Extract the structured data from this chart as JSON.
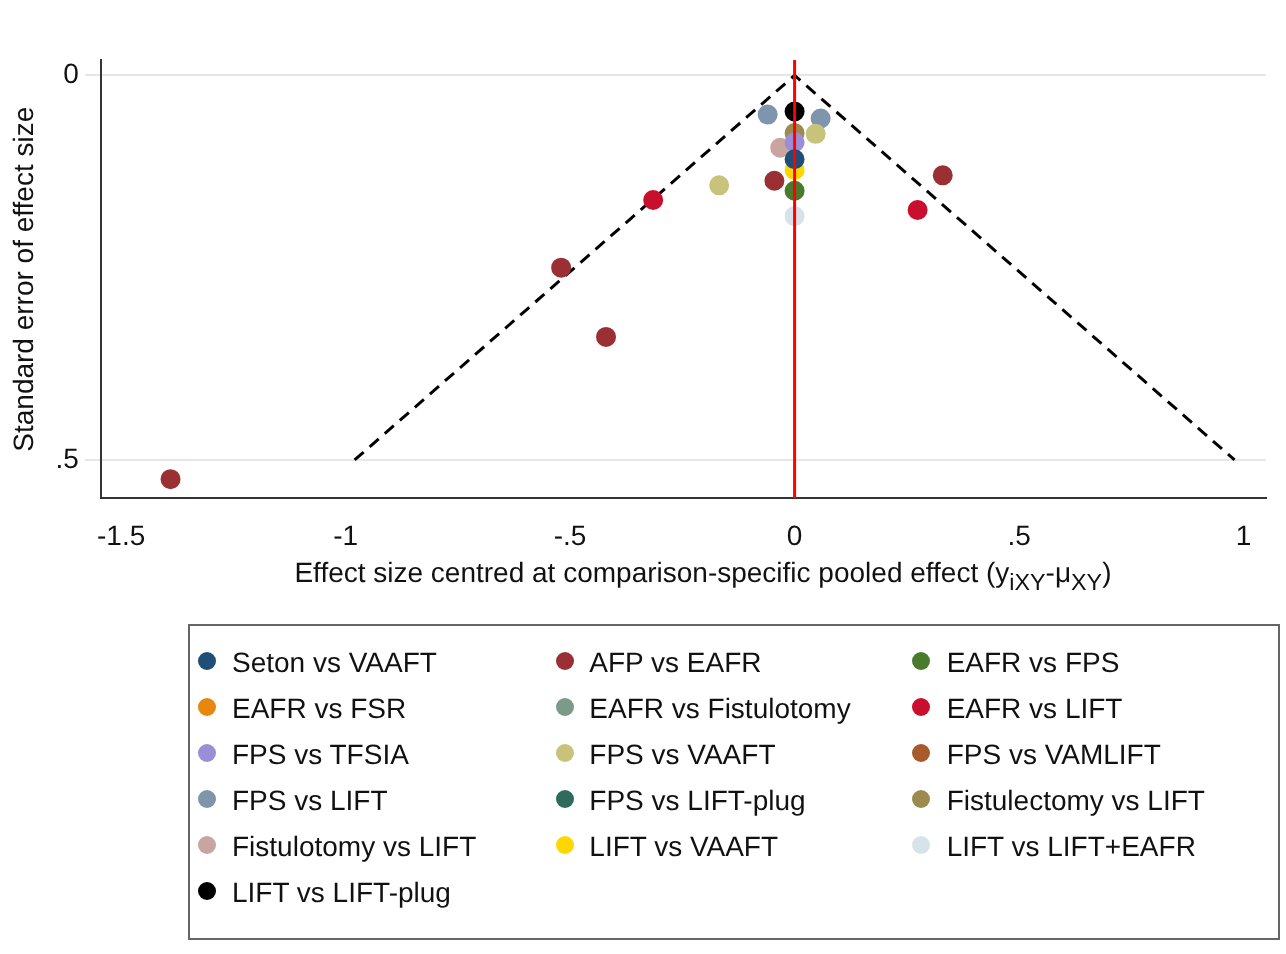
{
  "chart_data": {
    "type": "scatter",
    "xlabel": "Effect size centred at comparison-specific pooled effect (y$_{iXY}$-μ$_{XY}$)",
    "ylabel": "Standard error of effect size",
    "xlim": [
      -1.545,
      1.05
    ],
    "ylim": [
      0.55,
      -0.02
    ],
    "xticks": [
      -1.5,
      -1,
      {
        "value": -0.5,
        "label": "-.5"
      },
      0,
      {
        "value": 0.5,
        "label": ".5"
      },
      1
    ],
    "yticks": [
      0,
      {
        "value": 0.5,
        "label": ".5"
      }
    ],
    "grid": "y",
    "legend": "bottom",
    "marker": "circle",
    "ref_lines": [
      {
        "axis": "x",
        "value": 0,
        "color": "#ff0000"
      }
    ],
    "series": [
      {
        "name": "Seton vs VAAFT",
        "color": "#1f4e79",
        "x": [
          0
        ],
        "values": [
          0.109
        ]
      },
      {
        "name": "AFP vs EAFR",
        "color": "#9b3034",
        "x": [
          -1.39,
          -0.52,
          -0.42,
          -0.045,
          0.33
        ],
        "values": [
          0.525,
          0.25,
          0.34,
          0.137,
          0.13
        ]
      },
      {
        "name": "EAFR vs FPS",
        "color": "#4a7a2c",
        "x": [
          0
        ],
        "values": [
          0.15
        ]
      },
      {
        "name": "EAFR vs FSR",
        "color": "#e8870e"
      },
      {
        "name": "EAFR vs Fistulotomy",
        "color": "#7a9a8a"
      },
      {
        "name": "EAFR vs LIFT",
        "color": "#c8102e",
        "x": [
          -0.315,
          0.274
        ],
        "values": [
          0.162,
          0.175
        ]
      },
      {
        "name": "FPS vs TFSIA",
        "color": "#9a8fd6",
        "x": [
          0
        ],
        "values": [
          0.087
        ]
      },
      {
        "name": "FPS vs VAAFT",
        "color": "#c8c37a",
        "x": [
          -0.168,
          0.047
        ],
        "values": [
          0.143,
          0.076
        ]
      },
      {
        "name": "FPS vs VAMLIFT",
        "color": "#a85a2a"
      },
      {
        "name": "FPS vs LIFT",
        "color": "#7f95ad",
        "x": [
          -0.06,
          0.058
        ],
        "values": [
          0.051,
          0.056
        ]
      },
      {
        "name": "FPS vs LIFT-plug",
        "color": "#2e6b5e"
      },
      {
        "name": "Fistulectomy vs LIFT",
        "color": "#9c8a4e",
        "x": [
          0
        ],
        "values": [
          0.075
        ]
      },
      {
        "name": "Fistulotomy vs LIFT",
        "color": "#c9a5a0",
        "x": [
          -0.032
        ],
        "values": [
          0.094
        ]
      },
      {
        "name": "LIFT vs VAAFT",
        "color": "#ffd700",
        "x": [
          0
        ],
        "values": [
          0.123
        ]
      },
      {
        "name": "LIFT vs LIFT+EAFR",
        "color": "#d6e4ea",
        "x": [
          0
        ],
        "values": [
          0.183
        ]
      },
      {
        "name": "LIFT vs LIFT-plug",
        "color": "#000000",
        "x": [
          0
        ],
        "values": [
          0.047
        ]
      },
      {
        "type": "line",
        "color": "#000000",
        "line_style": "dashed",
        "marker": "none",
        "x": [
          -0.98,
          0,
          0.98
        ],
        "values": [
          0.5,
          0,
          0.5
        ]
      }
    ]
  }
}
